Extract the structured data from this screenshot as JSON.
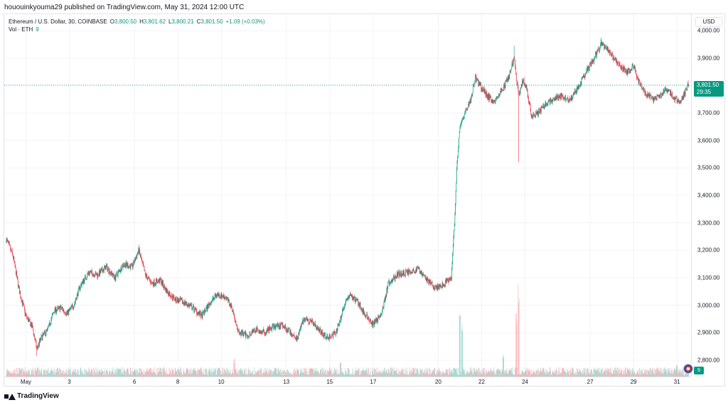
{
  "header": {
    "published_line": "hououinkyouma29 published on TradingView.com, May 31, 2024 12:00 UTC"
  },
  "legend": {
    "symbol": "Ethereum / U.S. Dollar, 30, COINBASE",
    "open_label": "O",
    "open": "3,800.50",
    "high_label": "H",
    "high": "3,801.62",
    "low_label": "L",
    "low": "3,800.21",
    "close_label": "C",
    "close": "3,801.50",
    "change": "+1.09 (+0.03%)",
    "volume_label": "Vol · ETH",
    "volume": "9"
  },
  "price_axis": {
    "currency_button": "USD"
  },
  "last_price": {
    "price": "3,801.50",
    "countdown": "29:35"
  },
  "volume_tag": "9",
  "footer": {
    "brand": "TradingView"
  },
  "colors": {
    "up": "#089981",
    "down": "#f23645",
    "grid": "#f0f3fa",
    "text": "#131722"
  },
  "chart_data": {
    "type": "candlestick",
    "symbol": "ETH/USD",
    "interval": "30",
    "ylim": [
      2740,
      4060
    ],
    "y_ticks": [
      2800,
      2900,
      3000,
      3100,
      3200,
      3300,
      3400,
      3500,
      3600,
      3700,
      3800,
      3900,
      4000
    ],
    "y_tick_labels": [
      "2,800.00",
      "2,900.00",
      "3,000.00",
      "3,100.00",
      "3,200.00",
      "3,300.00",
      "3,400.00",
      "3,500.00",
      "3,600.00",
      "3,700.00",
      "3,800.00",
      "3,900.00",
      "4,000.00"
    ],
    "x_ticks": [
      {
        "day": 1,
        "label": "May"
      },
      {
        "day": 3,
        "label": "3"
      },
      {
        "day": 6,
        "label": "6"
      },
      {
        "day": 8,
        "label": "8"
      },
      {
        "day": 10,
        "label": "10"
      },
      {
        "day": 13,
        "label": "13"
      },
      {
        "day": 15,
        "label": "15"
      },
      {
        "day": 17,
        "label": "17"
      },
      {
        "day": 20,
        "label": "20"
      },
      {
        "day": 22,
        "label": "22"
      },
      {
        "day": 24,
        "label": "24"
      },
      {
        "day": 27,
        "label": "27"
      },
      {
        "day": 29,
        "label": "29"
      },
      {
        "day": 31,
        "label": "31"
      }
    ],
    "x_range_days": [
      0.1,
      31.55
    ],
    "last_price": 3801.5,
    "price_path": [
      [
        0.1,
        3240
      ],
      [
        0.4,
        3180
      ],
      [
        0.7,
        3050
      ],
      [
        1.0,
        2960
      ],
      [
        1.3,
        2920
      ],
      [
        1.5,
        2840
      ],
      [
        1.7,
        2880
      ],
      [
        2.0,
        2910
      ],
      [
        2.3,
        2980
      ],
      [
        2.6,
        2990
      ],
      [
        2.9,
        2970
      ],
      [
        3.2,
        3000
      ],
      [
        3.5,
        3070
      ],
      [
        3.9,
        3120
      ],
      [
        4.3,
        3110
      ],
      [
        4.7,
        3140
      ],
      [
        5.1,
        3100
      ],
      [
        5.5,
        3150
      ],
      [
        5.9,
        3140
      ],
      [
        6.2,
        3200
      ],
      [
        6.5,
        3110
      ],
      [
        6.8,
        3080
      ],
      [
        7.2,
        3090
      ],
      [
        7.5,
        3050
      ],
      [
        7.9,
        3020
      ],
      [
        8.3,
        3010
      ],
      [
        8.7,
        2990
      ],
      [
        9.1,
        2960
      ],
      [
        9.5,
        3010
      ],
      [
        9.8,
        3040
      ],
      [
        10.2,
        3030
      ],
      [
        10.5,
        2990
      ],
      [
        10.8,
        2900
      ],
      [
        11.2,
        2890
      ],
      [
        11.6,
        2910
      ],
      [
        12.0,
        2900
      ],
      [
        12.4,
        2920
      ],
      [
        12.8,
        2930
      ],
      [
        13.2,
        2900
      ],
      [
        13.5,
        2880
      ],
      [
        13.8,
        2950
      ],
      [
        14.2,
        2940
      ],
      [
        14.5,
        2910
      ],
      [
        14.9,
        2880
      ],
      [
        15.3,
        2900
      ],
      [
        15.6,
        2980
      ],
      [
        15.9,
        3040
      ],
      [
        16.3,
        3010
      ],
      [
        16.7,
        2960
      ],
      [
        17.0,
        2930
      ],
      [
        17.4,
        2970
      ],
      [
        17.7,
        3080
      ],
      [
        18.1,
        3110
      ],
      [
        18.6,
        3120
      ],
      [
        19.1,
        3130
      ],
      [
        19.5,
        3090
      ],
      [
        19.9,
        3060
      ],
      [
        20.3,
        3080
      ],
      [
        20.6,
        3100
      ],
      [
        20.75,
        3300
      ],
      [
        20.85,
        3500
      ],
      [
        21.0,
        3650
      ],
      [
        21.3,
        3720
      ],
      [
        21.5,
        3750
      ],
      [
        21.7,
        3830
      ],
      [
        22.0,
        3790
      ],
      [
        22.3,
        3760
      ],
      [
        22.6,
        3740
      ],
      [
        22.9,
        3780
      ],
      [
        23.2,
        3820
      ],
      [
        23.5,
        3900
      ],
      [
        23.7,
        3760
      ],
      [
        23.9,
        3820
      ],
      [
        24.1,
        3780
      ],
      [
        24.3,
        3690
      ],
      [
        24.6,
        3700
      ],
      [
        24.9,
        3730
      ],
      [
        25.3,
        3750
      ],
      [
        25.7,
        3760
      ],
      [
        26.1,
        3750
      ],
      [
        26.5,
        3800
      ],
      [
        26.9,
        3860
      ],
      [
        27.2,
        3900
      ],
      [
        27.5,
        3950
      ],
      [
        27.8,
        3930
      ],
      [
        28.1,
        3900
      ],
      [
        28.4,
        3870
      ],
      [
        28.7,
        3850
      ],
      [
        29.0,
        3870
      ],
      [
        29.3,
        3800
      ],
      [
        29.6,
        3770
      ],
      [
        29.9,
        3750
      ],
      [
        30.2,
        3760
      ],
      [
        30.5,
        3790
      ],
      [
        30.8,
        3760
      ],
      [
        31.1,
        3740
      ],
      [
        31.3,
        3760
      ],
      [
        31.5,
        3801.5
      ]
    ],
    "wick_extremes": [
      {
        "day": 1.5,
        "low": 2815
      },
      {
        "day": 6.2,
        "high": 3220
      },
      {
        "day": 23.5,
        "high": 3945
      },
      {
        "day": 23.7,
        "low": 3520
      },
      {
        "day": 27.5,
        "high": 3975
      }
    ],
    "volume_spikes": [
      {
        "day": 21.0,
        "value": 1.0
      },
      {
        "day": 21.1,
        "value": 0.7
      },
      {
        "day": 23.7,
        "value": 1.25
      },
      {
        "day": 23.6,
        "value": 0.95
      },
      {
        "day": 23.0,
        "value": 0.3
      },
      {
        "day": 10.6,
        "value": 0.25
      },
      {
        "day": 15.5,
        "value": 0.2
      },
      {
        "day": 31.0,
        "value": 0.18
      }
    ]
  }
}
